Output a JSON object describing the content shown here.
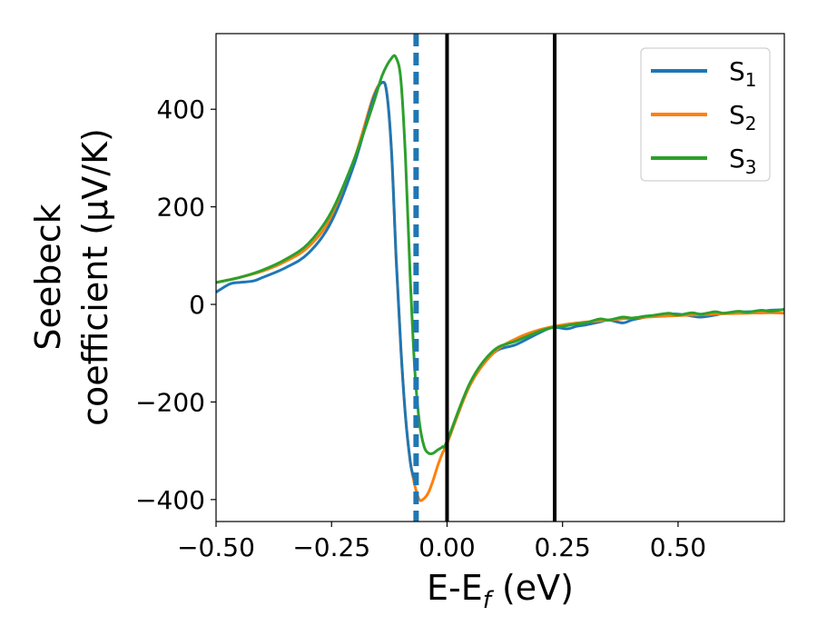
{
  "chart_data": {
    "type": "line",
    "title": "",
    "xlabel": {
      "main": "E-E",
      "sub": "f",
      "suffix": " (eV)"
    },
    "ylabel": {
      "line1": "Seebeck",
      "line2": "coefficient  (μV/K)"
    },
    "xlim": [
      -0.5,
      0.73
    ],
    "ylim": [
      -445,
      555
    ],
    "xticks": [
      -0.5,
      -0.25,
      0.0,
      0.25,
      0.5
    ],
    "xtick_labels": [
      "−0.50",
      "−0.25",
      "0.00",
      "0.25",
      "0.50"
    ],
    "yticks": [
      -400,
      -200,
      0,
      200,
      400
    ],
    "ytick_labels": [
      "−400",
      "−200",
      "0",
      "200",
      "400"
    ],
    "grid": false,
    "legend_position": "top-right",
    "series": [
      {
        "name": "S",
        "sub": "1",
        "color": "#1f77b4",
        "x": [
          -0.5,
          -0.47,
          -0.45,
          -0.42,
          -0.4,
          -0.35,
          -0.3,
          -0.25,
          -0.2,
          -0.16,
          -0.14,
          -0.13,
          -0.12,
          -0.11,
          -0.1,
          -0.09,
          -0.08,
          -0.075,
          -0.07
        ],
        "y": [
          25,
          42,
          45,
          48,
          55,
          75,
          105,
          170,
          290,
          420,
          455,
          430,
          310,
          90,
          -90,
          -230,
          -320,
          -345,
          -360
        ]
      },
      {
        "name": "S",
        "sub": "2",
        "color": "#ff7f0e",
        "x": [
          -0.5,
          -0.45,
          -0.4,
          -0.35,
          -0.3,
          -0.25,
          -0.2,
          -0.16,
          -0.14,
          -0.13,
          -0.12,
          -0.11,
          -0.1,
          -0.09,
          -0.08,
          -0.07,
          -0.06,
          -0.05,
          -0.04,
          -0.03,
          -0.02,
          -0.01,
          0.0,
          0.05,
          0.1,
          0.15,
          0.2,
          0.25,
          0.3,
          0.35,
          0.4,
          0.45,
          0.5,
          0.55,
          0.6,
          0.65,
          0.7,
          0.73
        ],
        "y": [
          45,
          55,
          68,
          88,
          118,
          180,
          300,
          425,
          455,
          430,
          310,
          90,
          -90,
          -230,
          -320,
          -370,
          -400,
          -398,
          -385,
          -360,
          -330,
          -305,
          -285,
          -165,
          -100,
          -70,
          -52,
          -42,
          -36,
          -32,
          -28,
          -25,
          -23,
          -21,
          -19,
          -18,
          -17,
          -18
        ]
      },
      {
        "name": "S",
        "sub": "3",
        "color": "#2ca02c",
        "x": [
          -0.5,
          -0.45,
          -0.4,
          -0.35,
          -0.3,
          -0.25,
          -0.2,
          -0.16,
          -0.14,
          -0.12,
          -0.11,
          -0.1,
          -0.09,
          -0.08,
          -0.07,
          -0.06,
          -0.05,
          -0.04,
          -0.03,
          -0.02,
          -0.01,
          0.0,
          0.05,
          0.1,
          0.15,
          0.2,
          0.23,
          0.25,
          0.28,
          0.3,
          0.33,
          0.35,
          0.38,
          0.4,
          0.43,
          0.45,
          0.48,
          0.5,
          0.53,
          0.55,
          0.58,
          0.6,
          0.63,
          0.65,
          0.68,
          0.7,
          0.73
        ],
        "y": [
          45,
          55,
          70,
          92,
          125,
          190,
          300,
          410,
          470,
          505,
          505,
          460,
          300,
          60,
          -130,
          -240,
          -290,
          -305,
          -305,
          -298,
          -292,
          -280,
          -160,
          -95,
          -75,
          -55,
          -47,
          -45,
          -40,
          -38,
          -30,
          -32,
          -26,
          -28,
          -24,
          -22,
          -18,
          -22,
          -17,
          -20,
          -15,
          -18,
          -14,
          -16,
          -12,
          -14,
          -10
        ]
      }
    ],
    "extra_series_paths": {
      "S1_tail": {
        "x": [
          0.0,
          0.05,
          0.1,
          0.15,
          0.2,
          0.23,
          0.26,
          0.28,
          0.3,
          0.33,
          0.35,
          0.38,
          0.4,
          0.43,
          0.45,
          0.48,
          0.5,
          0.53,
          0.55,
          0.58,
          0.6,
          0.63,
          0.65,
          0.68,
          0.7,
          0.73
        ],
        "y": [
          -285,
          -165,
          -100,
          -82,
          -58,
          -47,
          -50,
          -45,
          -42,
          -36,
          -32,
          -38,
          -32,
          -26,
          -24,
          -20,
          -20,
          -24,
          -26,
          -22,
          -18,
          -16,
          -15,
          -14,
          -12,
          -11
        ]
      }
    },
    "vertical_lines": [
      {
        "x": -0.067,
        "color": "#1f77b4",
        "style": "dashed"
      },
      {
        "x": 0.0,
        "color": "#000000",
        "style": "solid"
      },
      {
        "x": 0.233,
        "color": "#000000",
        "style": "solid"
      }
    ]
  }
}
